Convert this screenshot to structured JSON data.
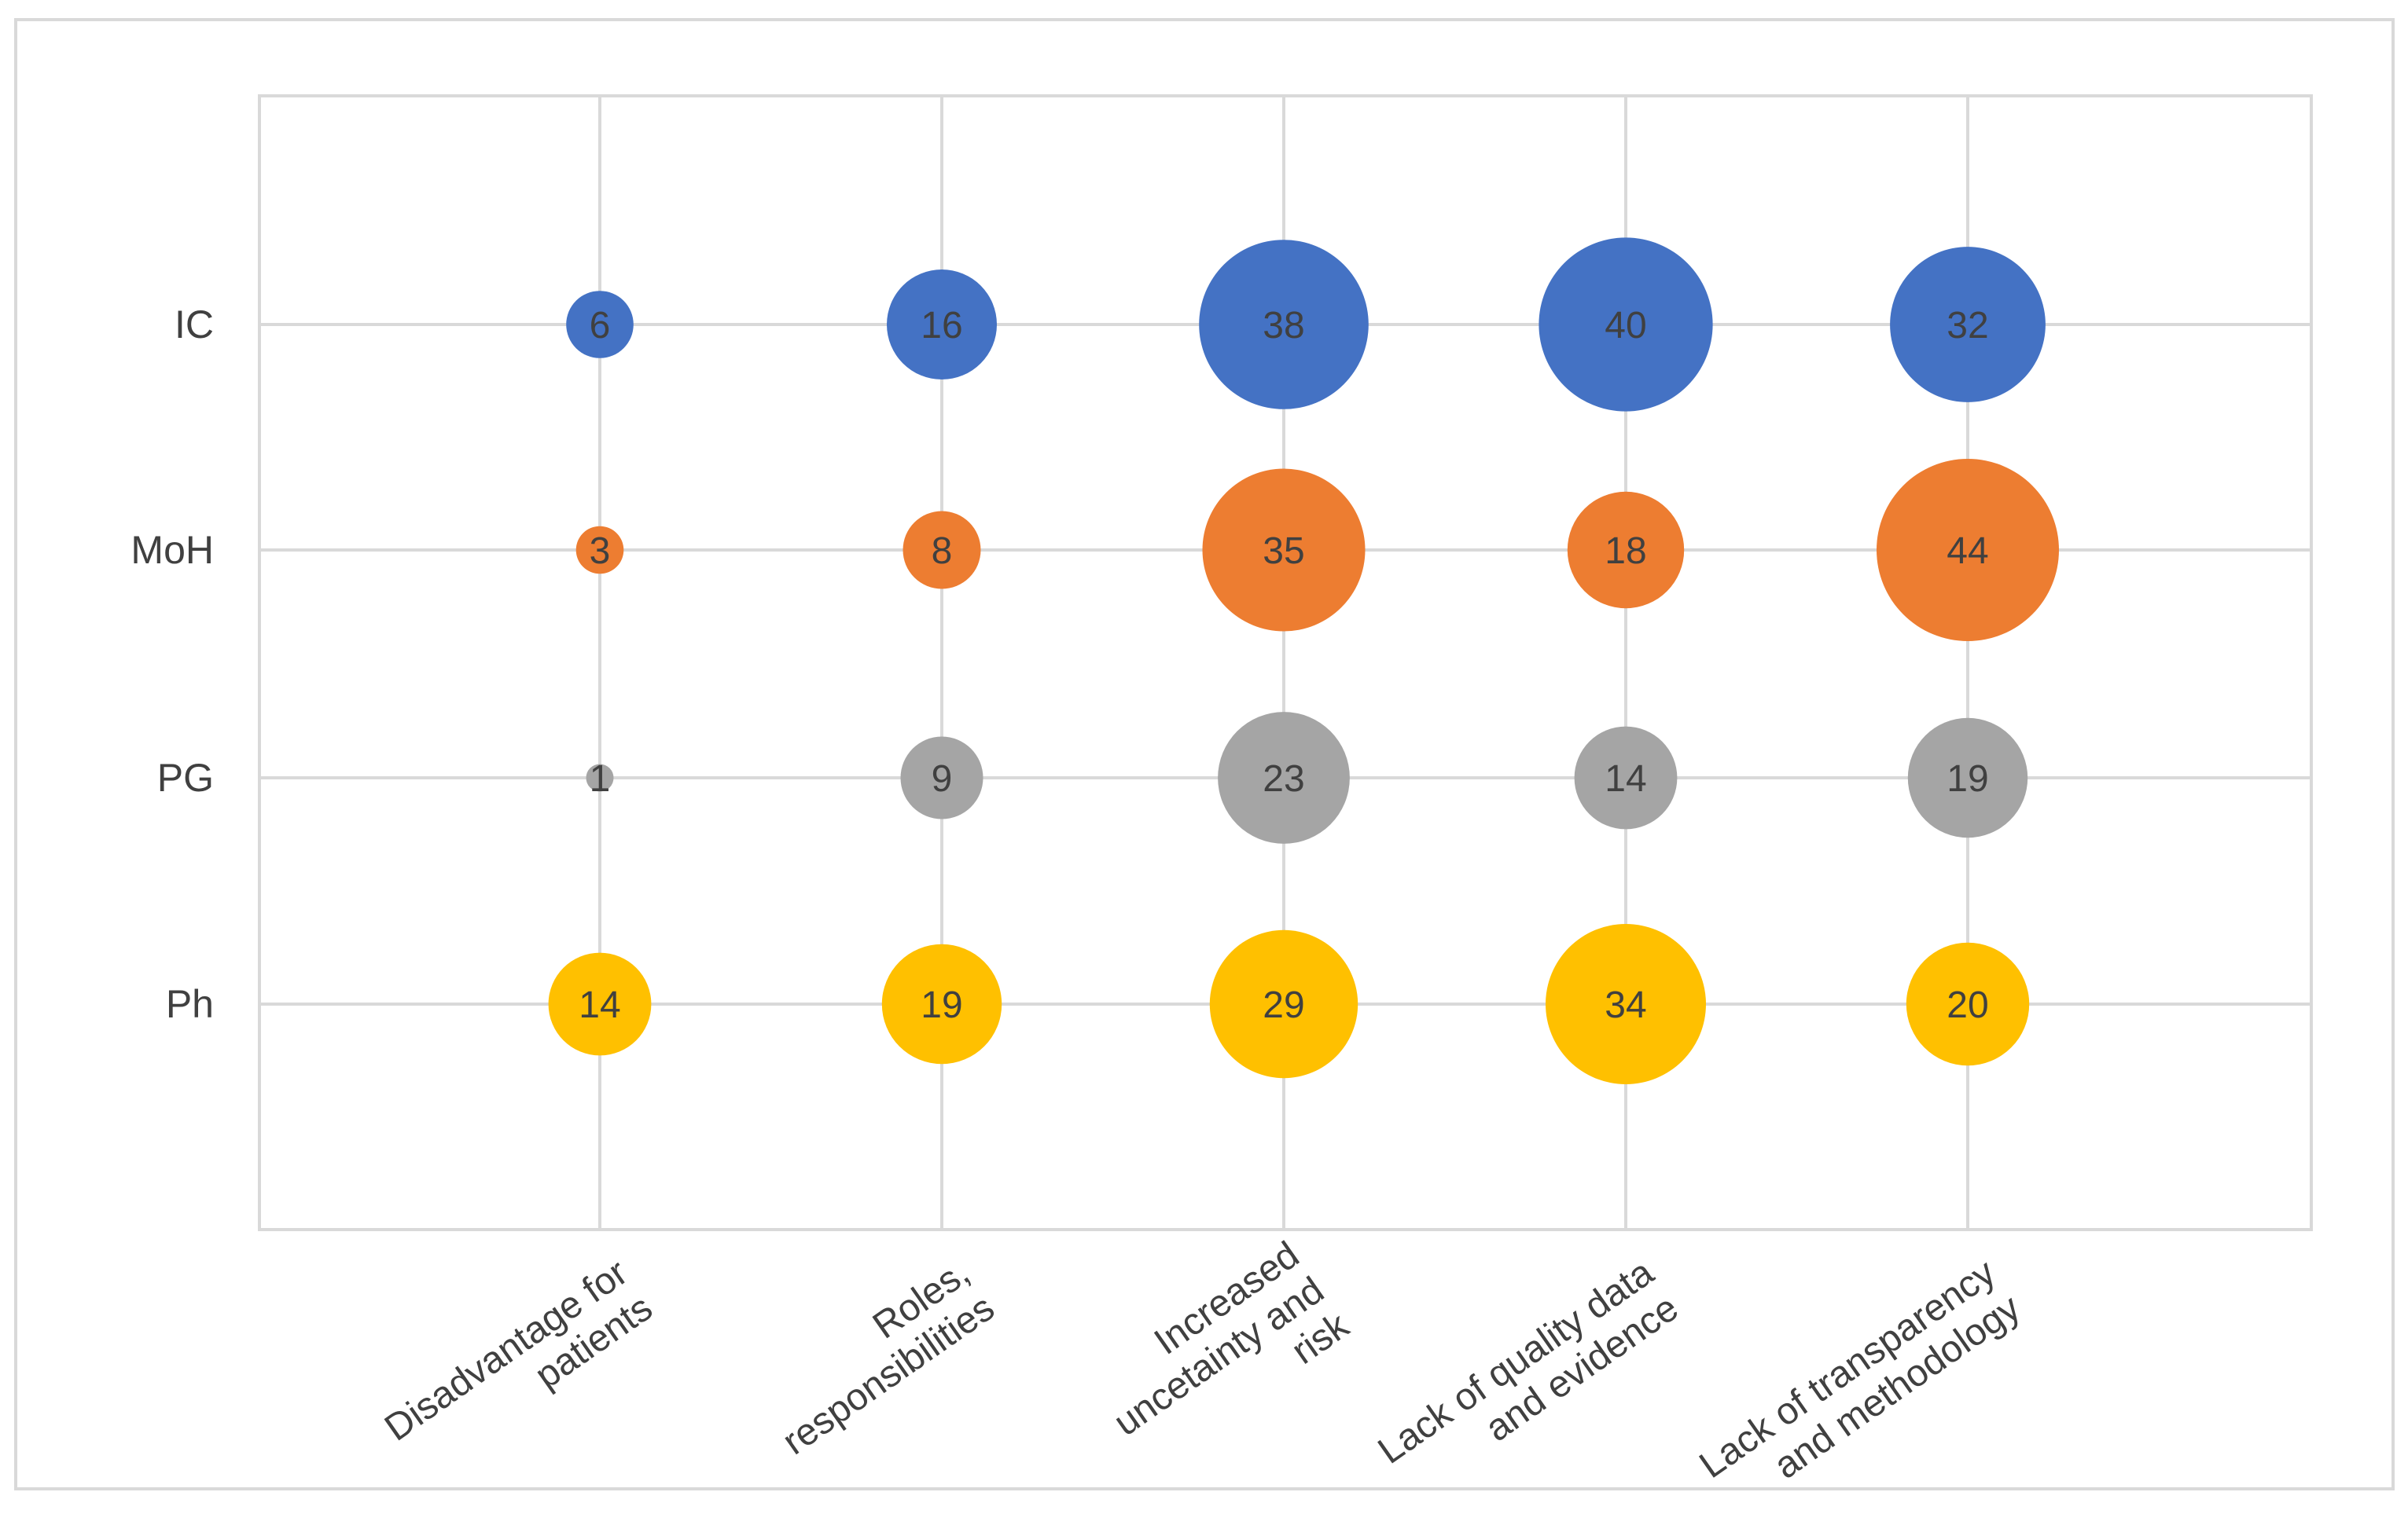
{
  "chart_data": {
    "type": "bubble",
    "title": "",
    "xlabel": "",
    "ylabel": "",
    "grid": true,
    "legend": "none",
    "categories": [
      [
        "Disadvantage for",
        "patients"
      ],
      [
        "Roles,",
        "responsibilities"
      ],
      [
        "Increased",
        "uncetainty and",
        "risk"
      ],
      [
        "Lack of quality data",
        "and evidence"
      ],
      [
        "Lack of transparency",
        "and methodology"
      ]
    ],
    "series": [
      {
        "name": "IC",
        "color": "#4472C4",
        "values": [
          6,
          16,
          38,
          40,
          32
        ]
      },
      {
        "name": "MoH",
        "color": "#ED7D31",
        "values": [
          3,
          8,
          35,
          18,
          44
        ]
      },
      {
        "name": "PG",
        "color": "#A5A5A5",
        "values": [
          1,
          9,
          23,
          14,
          19
        ]
      },
      {
        "name": "Ph",
        "color": "#FFC000",
        "values": [
          14,
          19,
          29,
          34,
          20
        ]
      }
    ],
    "colors": {
      "grid": "#D9D9D9",
      "label_text": "#404040",
      "frame": "#D9D9D9"
    }
  }
}
